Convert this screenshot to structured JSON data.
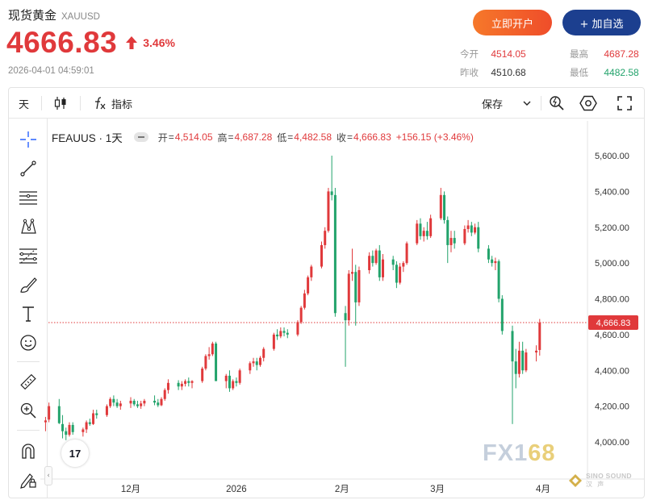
{
  "header": {
    "title": "现货黄金",
    "symbol": "XAUUSD",
    "price": "4666.83",
    "change_pct": "3.46%",
    "datetime": "2026-04-01 04:59:01",
    "open_account_label": "立即开户",
    "add_watchlist_label": "+ 加自选",
    "stats": {
      "open_label": "今开",
      "open_value": "4514.05",
      "high_label": "最高",
      "high_value": "4687.28",
      "prev_close_label": "昨收",
      "prev_close_value": "4510.68",
      "low_label": "最低",
      "low_value": "4482.58"
    },
    "colors": {
      "up": "#e0393b",
      "down": "#22a36b",
      "brand_blue": "#1c3f8f",
      "brand_orange": "#f26a2a"
    }
  },
  "toolbar": {
    "interval_label": "天",
    "candle_icon": "candlestick-icon",
    "fx_icon": "function-icon",
    "indicators_label": "指标",
    "save_label": "保存",
    "icons": [
      "save-dropdown-icon",
      "quick-search-icon",
      "settings-icon",
      "fullscreen-icon"
    ]
  },
  "left_tools": [
    "crosshair-icon",
    "trend-line-icon",
    "horizontal-lines-icon",
    "pattern-icon",
    "fib-icon",
    "brush-icon",
    "text-icon",
    "emoji-icon",
    "ruler-icon",
    "zoom-in-icon",
    "magnet-icon",
    "lock-draw-icon"
  ],
  "legend": {
    "symbol": "FEAUUS · 1天",
    "open_label": "开",
    "open_value": "4,514.05",
    "high_label": "高",
    "high_value": "4,687.28",
    "low_label": "低",
    "low_value": "4,482.58",
    "close_label": "收",
    "close_value": "4,666.83",
    "change": "+156.15 (+3.46%)"
  },
  "watermark": {
    "fx": "FX",
    "one": "1",
    "six_eight": "68",
    "sino": "SINO SOUND",
    "sino_sub": "汉 声"
  },
  "tv_logo": "17",
  "chart_data": {
    "type": "candlestick",
    "title": "",
    "xlabel": "",
    "ylabel": "",
    "ylim": [
      3880,
      5680
    ],
    "yticks": [
      4000,
      4200,
      4400,
      4600,
      4800,
      5000,
      5200,
      5400,
      5600
    ],
    "ytick_labels": [
      "4,000.00",
      "4,200.00",
      "4,400.00",
      "4,600.00",
      "4,800.00",
      "5,000.00",
      "5,200.00",
      "5,400.00",
      "5,600.00"
    ],
    "xtick_labels": [
      "12月",
      "2026",
      "2月",
      "3月",
      "4月"
    ],
    "xtick_dates": [
      "2025-12-01",
      "2026-01-01",
      "2026-02-01",
      "2026-03-01",
      "2026-04-01"
    ],
    "last_price": 4666.83,
    "last_price_label": "4,666.83",
    "up_color": "#e0393b",
    "down_color": "#22a36b",
    "grid": false,
    "candles": [
      {
        "date": "2025-11-03",
        "open": 4010,
        "high": 4025,
        "low": 3990,
        "close": 4000
      },
      {
        "date": "2025-11-04",
        "open": 4000,
        "high": 4020,
        "low": 3985,
        "close": 4015
      },
      {
        "date": "2025-11-05",
        "open": 4020,
        "high": 4120,
        "low": 4015,
        "close": 4110
      },
      {
        "date": "2025-11-06",
        "open": 4110,
        "high": 4140,
        "low": 4060,
        "close": 4120
      },
      {
        "date": "2025-11-07",
        "open": 4125,
        "high": 4220,
        "low": 4110,
        "close": 4200
      },
      {
        "date": "2025-11-10",
        "open": 4200,
        "high": 4240,
        "low": 4100,
        "close": 4105
      },
      {
        "date": "2025-11-11",
        "open": 4100,
        "high": 4150,
        "low": 4020,
        "close": 4060
      },
      {
        "date": "2025-11-12",
        "open": 4060,
        "high": 4080,
        "low": 4010,
        "close": 4040
      },
      {
        "date": "2025-11-13",
        "open": 4040,
        "high": 4110,
        "low": 4030,
        "close": 4095
      },
      {
        "date": "2025-11-14",
        "open": 4095,
        "high": 4110,
        "low": 4040,
        "close": 4055
      },
      {
        "date": "2025-11-17",
        "open": 4055,
        "high": 4080,
        "low": 4030,
        "close": 4070
      },
      {
        "date": "2025-11-18",
        "open": 4070,
        "high": 4120,
        "low": 4050,
        "close": 4110
      },
      {
        "date": "2025-11-19",
        "open": 4110,
        "high": 4130,
        "low": 4090,
        "close": 4100
      },
      {
        "date": "2025-11-20",
        "open": 4100,
        "high": 4180,
        "low": 4095,
        "close": 4160
      },
      {
        "date": "2025-11-21",
        "open": 4160,
        "high": 4180,
        "low": 4130,
        "close": 4150
      },
      {
        "date": "2025-11-24",
        "open": 4150,
        "high": 4210,
        "low": 4140,
        "close": 4200
      },
      {
        "date": "2025-11-25",
        "open": 4200,
        "high": 4250,
        "low": 4190,
        "close": 4240
      },
      {
        "date": "2025-11-26",
        "open": 4240,
        "high": 4260,
        "low": 4200,
        "close": 4220
      },
      {
        "date": "2025-11-27",
        "open": 4220,
        "high": 4240,
        "low": 4190,
        "close": 4200
      },
      {
        "date": "2025-11-28",
        "open": 4200,
        "high": 4230,
        "low": 4180,
        "close": 4215
      },
      {
        "date": "2025-12-01",
        "open": 4215,
        "high": 4250,
        "low": 4190,
        "close": 4230
      },
      {
        "date": "2025-12-02",
        "open": 4230,
        "high": 4240,
        "low": 4200,
        "close": 4210
      },
      {
        "date": "2025-12-03",
        "open": 4210,
        "high": 4230,
        "low": 4190,
        "close": 4200
      },
      {
        "date": "2025-12-04",
        "open": 4200,
        "high": 4230,
        "low": 4185,
        "close": 4215
      },
      {
        "date": "2025-12-05",
        "open": 4215,
        "high": 4240,
        "low": 4200,
        "close": 4230
      },
      {
        "date": "2025-12-08",
        "open": 4230,
        "high": 4260,
        "low": 4205,
        "close": 4220
      },
      {
        "date": "2025-12-09",
        "open": 4220,
        "high": 4240,
        "low": 4195,
        "close": 4205
      },
      {
        "date": "2025-12-10",
        "open": 4205,
        "high": 4250,
        "low": 4200,
        "close": 4240
      },
      {
        "date": "2025-12-11",
        "open": 4240,
        "high": 4300,
        "low": 4230,
        "close": 4290
      },
      {
        "date": "2025-12-12",
        "open": 4290,
        "high": 4350,
        "low": 4270,
        "close": 4330
      },
      {
        "date": "2025-12-15",
        "open": 4330,
        "high": 4345,
        "low": 4290,
        "close": 4310
      },
      {
        "date": "2025-12-16",
        "open": 4310,
        "high": 4340,
        "low": 4290,
        "close": 4325
      },
      {
        "date": "2025-12-17",
        "open": 4325,
        "high": 4350,
        "low": 4310,
        "close": 4340
      },
      {
        "date": "2025-12-18",
        "open": 4340,
        "high": 4360,
        "low": 4310,
        "close": 4330
      },
      {
        "date": "2025-12-19",
        "open": 4330,
        "high": 4345,
        "low": 4300,
        "close": 4340
      },
      {
        "date": "2025-12-22",
        "open": 4340,
        "high": 4420,
        "low": 4330,
        "close": 4410
      },
      {
        "date": "2025-12-23",
        "open": 4410,
        "high": 4490,
        "low": 4400,
        "close": 4480
      },
      {
        "date": "2025-12-24",
        "open": 4480,
        "high": 4530,
        "low": 4460,
        "close": 4490
      },
      {
        "date": "2025-12-25",
        "open": 4490,
        "high": 4560,
        "low": 4480,
        "close": 4550
      },
      {
        "date": "2025-12-26",
        "open": 4550,
        "high": 4560,
        "low": 4350,
        "close": 4340
      },
      {
        "date": "2025-12-29",
        "open": 4340,
        "high": 4380,
        "low": 4300,
        "close": 4370
      },
      {
        "date": "2025-12-30",
        "open": 4370,
        "high": 4400,
        "low": 4280,
        "close": 4300
      },
      {
        "date": "2025-12-31",
        "open": 4300,
        "high": 4350,
        "low": 4290,
        "close": 4340
      },
      {
        "date": "2026-01-01",
        "open": 4340,
        "high": 4360,
        "low": 4310,
        "close": 4330
      },
      {
        "date": "2026-01-02",
        "open": 4330,
        "high": 4410,
        "low": 4320,
        "close": 4400
      },
      {
        "date": "2026-01-05",
        "open": 4400,
        "high": 4450,
        "low": 4380,
        "close": 4440
      },
      {
        "date": "2026-01-06",
        "open": 4440,
        "high": 4470,
        "low": 4420,
        "close": 4450
      },
      {
        "date": "2026-01-07",
        "open": 4450,
        "high": 4470,
        "low": 4400,
        "close": 4430
      },
      {
        "date": "2026-01-08",
        "open": 4430,
        "high": 4480,
        "low": 4420,
        "close": 4470
      },
      {
        "date": "2026-01-09",
        "open": 4470,
        "high": 4530,
        "low": 4450,
        "close": 4520
      },
      {
        "date": "2026-01-12",
        "open": 4520,
        "high": 4610,
        "low": 4510,
        "close": 4600
      },
      {
        "date": "2026-01-13",
        "open": 4600,
        "high": 4630,
        "low": 4570,
        "close": 4590
      },
      {
        "date": "2026-01-14",
        "open": 4590,
        "high": 4640,
        "low": 4580,
        "close": 4620
      },
      {
        "date": "2026-01-15",
        "open": 4620,
        "high": 4640,
        "low": 4590,
        "close": 4610
      },
      {
        "date": "2026-01-16",
        "open": 4610,
        "high": 4630,
        "low": 4580,
        "close": 4600
      },
      {
        "date": "2026-01-19",
        "open": 4600,
        "high": 4680,
        "low": 4590,
        "close": 4670
      },
      {
        "date": "2026-01-20",
        "open": 4670,
        "high": 4760,
        "low": 4660,
        "close": 4750
      },
      {
        "date": "2026-01-21",
        "open": 4750,
        "high": 4850,
        "low": 4740,
        "close": 4830
      },
      {
        "date": "2026-01-22",
        "open": 4830,
        "high": 4930,
        "low": 4820,
        "close": 4920
      },
      {
        "date": "2026-01-23",
        "open": 4920,
        "high": 4990,
        "low": 4900,
        "close": 4980
      },
      {
        "date": "2026-01-26",
        "open": 4980,
        "high": 5120,
        "low": 4970,
        "close": 5100
      },
      {
        "date": "2026-01-27",
        "open": 5100,
        "high": 5200,
        "low": 5080,
        "close": 5180
      },
      {
        "date": "2026-01-28",
        "open": 5180,
        "high": 5420,
        "low": 5170,
        "close": 5400
      },
      {
        "date": "2026-01-29",
        "open": 5400,
        "high": 5600,
        "low": 5350,
        "close": 5380
      },
      {
        "date": "2026-01-30",
        "open": 5380,
        "high": 5420,
        "low": 4700,
        "close": 4720
      },
      {
        "date": "2026-02-02",
        "open": 4720,
        "high": 4760,
        "low": 4420,
        "close": 4680
      },
      {
        "date": "2026-02-03",
        "open": 4680,
        "high": 4960,
        "low": 4650,
        "close": 4940
      },
      {
        "date": "2026-02-04",
        "open": 4940,
        "high": 5080,
        "low": 4900,
        "close": 4950
      },
      {
        "date": "2026-02-05",
        "open": 4950,
        "high": 4990,
        "low": 4650,
        "close": 4780
      },
      {
        "date": "2026-02-06",
        "open": 4780,
        "high": 4980,
        "low": 4760,
        "close": 4960
      },
      {
        "date": "2026-02-09",
        "open": 4960,
        "high": 5060,
        "low": 4940,
        "close": 5040
      },
      {
        "date": "2026-02-10",
        "open": 5040,
        "high": 5070,
        "low": 4980,
        "close": 5000
      },
      {
        "date": "2026-02-11",
        "open": 5000,
        "high": 5080,
        "low": 4990,
        "close": 5070
      },
      {
        "date": "2026-02-12",
        "open": 5070,
        "high": 5100,
        "low": 4900,
        "close": 4920
      },
      {
        "date": "2026-02-13",
        "open": 4920,
        "high": 5050,
        "low": 4900,
        "close": 5020
      },
      {
        "date": "2026-02-16",
        "open": 5020,
        "high": 5040,
        "low": 4960,
        "close": 4990
      },
      {
        "date": "2026-02-17",
        "open": 4990,
        "high": 5010,
        "low": 4860,
        "close": 4890
      },
      {
        "date": "2026-02-18",
        "open": 4890,
        "high": 5000,
        "low": 4880,
        "close": 4980
      },
      {
        "date": "2026-02-19",
        "open": 4980,
        "high": 5010,
        "low": 4950,
        "close": 5000
      },
      {
        "date": "2026-02-20",
        "open": 5000,
        "high": 5120,
        "low": 4990,
        "close": 5110
      },
      {
        "date": "2026-02-23",
        "open": 5110,
        "high": 5240,
        "low": 5100,
        "close": 5220
      },
      {
        "date": "2026-02-24",
        "open": 5220,
        "high": 5250,
        "low": 5130,
        "close": 5150
      },
      {
        "date": "2026-02-25",
        "open": 5150,
        "high": 5200,
        "low": 5120,
        "close": 5180
      },
      {
        "date": "2026-02-26",
        "open": 5180,
        "high": 5230,
        "low": 5130,
        "close": 5150
      },
      {
        "date": "2026-02-27",
        "open": 5150,
        "high": 5270,
        "low": 5140,
        "close": 5250
      },
      {
        "date": "2026-03-02",
        "open": 5250,
        "high": 5420,
        "low": 5240,
        "close": 5380
      },
      {
        "date": "2026-03-03",
        "open": 5380,
        "high": 5400,
        "low": 5220,
        "close": 5240
      },
      {
        "date": "2026-03-04",
        "open": 5240,
        "high": 5260,
        "low": 5000,
        "close": 5100
      },
      {
        "date": "2026-03-05",
        "open": 5100,
        "high": 5180,
        "low": 5060,
        "close": 5140
      },
      {
        "date": "2026-03-06",
        "open": 5140,
        "high": 5180,
        "low": 5080,
        "close": 5110
      },
      {
        "date": "2026-03-09",
        "open": 5110,
        "high": 5210,
        "low": 5100,
        "close": 5190
      },
      {
        "date": "2026-03-10",
        "open": 5190,
        "high": 5240,
        "low": 5170,
        "close": 5210
      },
      {
        "date": "2026-03-11",
        "open": 5210,
        "high": 5230,
        "low": 5150,
        "close": 5170
      },
      {
        "date": "2026-03-12",
        "open": 5170,
        "high": 5220,
        "low": 5160,
        "close": 5200
      },
      {
        "date": "2026-03-13",
        "open": 5200,
        "high": 5230,
        "low": 5060,
        "close": 5080
      },
      {
        "date": "2026-03-16",
        "open": 5080,
        "high": 5100,
        "low": 5000,
        "close": 5020
      },
      {
        "date": "2026-03-17",
        "open": 5020,
        "high": 5040,
        "low": 4980,
        "close": 5000
      },
      {
        "date": "2026-03-18",
        "open": 5000,
        "high": 5030,
        "low": 4960,
        "close": 5010
      },
      {
        "date": "2026-03-19",
        "open": 5010,
        "high": 5020,
        "low": 4780,
        "close": 4800
      },
      {
        "date": "2026-03-20",
        "open": 4800,
        "high": 4820,
        "low": 4600,
        "close": 4620
      },
      {
        "date": "2026-03-23",
        "open": 4620,
        "high": 4650,
        "low": 4100,
        "close": 4450
      },
      {
        "date": "2026-03-24",
        "open": 4450,
        "high": 4520,
        "low": 4300,
        "close": 4380
      },
      {
        "date": "2026-03-25",
        "open": 4380,
        "high": 4560,
        "low": 4360,
        "close": 4510
      },
      {
        "date": "2026-03-26",
        "open": 4510,
        "high": 4560,
        "low": 4380,
        "close": 4400
      },
      {
        "date": "2026-03-27",
        "open": 4400,
        "high": 4520,
        "low": 4390,
        "close": 4500
      },
      {
        "date": "2026-03-30",
        "open": 4500,
        "high": 4540,
        "low": 4450,
        "close": 4510
      },
      {
        "date": "2026-03-31",
        "open": 4514.05,
        "high": 4687.28,
        "low": 4482.58,
        "close": 4666.83
      }
    ]
  }
}
